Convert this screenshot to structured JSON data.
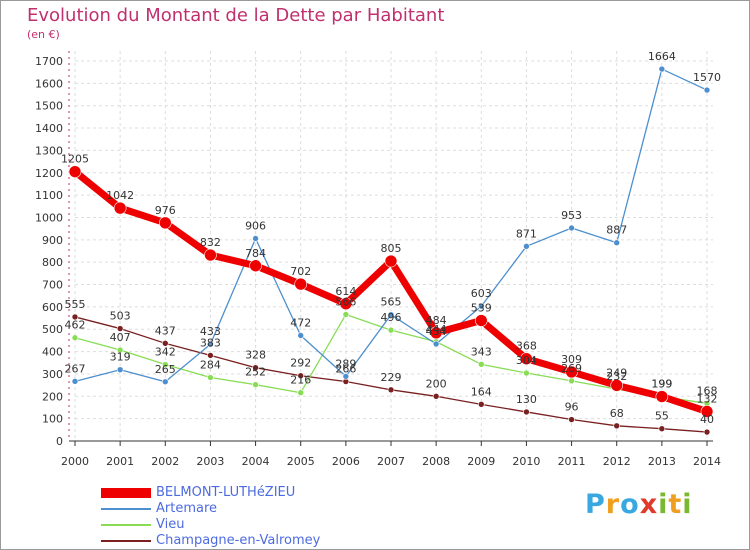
{
  "chart_data": {
    "type": "line",
    "title": "Evolution du Montant de la Dette par Habitant",
    "subtitle": "(en €)",
    "x": [
      "2000",
      "2001",
      "2002",
      "2003",
      "2004",
      "2005",
      "2006",
      "2007",
      "2008",
      "2009",
      "2010",
      "2011",
      "2012",
      "2013",
      "2014"
    ],
    "ylim": [
      0,
      1700
    ],
    "yticks": [
      0,
      100,
      200,
      300,
      400,
      500,
      600,
      700,
      800,
      900,
      1000,
      1100,
      1200,
      1300,
      1400,
      1500,
      1600,
      1700
    ],
    "grid": true,
    "legend_position": "bottom-left",
    "series": [
      {
        "name": "BELMONT-LUTHéZIEU",
        "color": "#ee0000",
        "values": [
          1205,
          1042,
          976,
          832,
          784,
          702,
          614,
          805,
          484,
          539,
          368,
          309,
          249,
          199,
          132
        ]
      },
      {
        "name": "Artemare",
        "color": "#4d8fce",
        "values": [
          267,
          319,
          265,
          433,
          906,
          472,
          289,
          565,
          434,
          603,
          871,
          953,
          887,
          1664,
          1570
        ]
      },
      {
        "name": "Vieu",
        "color": "#88dd55",
        "values": [
          462,
          407,
          342,
          284,
          252,
          216,
          566,
          496,
          444,
          343,
          304,
          269,
          232,
          199,
          168
        ]
      },
      {
        "name": "Champagne-en-Valromey",
        "color": "#7a2020",
        "values": [
          555,
          503,
          437,
          383,
          328,
          292,
          266,
          229,
          200,
          164,
          130,
          96,
          68,
          55,
          40
        ]
      }
    ],
    "data_labels": [
      {
        "series": 0,
        "values": [
          "1205",
          "1042",
          "976",
          "832",
          "784",
          "702",
          "614",
          "805",
          "484",
          "539",
          "368",
          "309",
          "249",
          "199",
          "132"
        ]
      },
      {
        "series": 1,
        "values": [
          "267",
          "319",
          "265",
          "433",
          "906",
          "472",
          "289",
          "565",
          "434",
          "603",
          "871",
          "953",
          "887",
          "1664",
          "1570"
        ]
      },
      {
        "series": 2,
        "values": [
          "462",
          "407",
          "342",
          "284",
          "252",
          "216",
          "566",
          "496",
          "444",
          "343",
          "304",
          "269",
          "232",
          "199",
          "168"
        ]
      },
      {
        "series": 3,
        "values": [
          "555",
          "503",
          "437",
          "383",
          "328",
          "292",
          "266",
          "229",
          "200",
          "164",
          "130",
          "96",
          "68",
          "55",
          "40"
        ]
      }
    ]
  },
  "logo": {
    "letters": [
      "P",
      "r",
      "o",
      "x",
      "i",
      "t",
      "i"
    ],
    "colors": [
      "#3aa8e0",
      "#f0a020",
      "#3aa8e0",
      "#e03a2a",
      "#7ab830",
      "#f0a020",
      "#7ab830"
    ]
  }
}
